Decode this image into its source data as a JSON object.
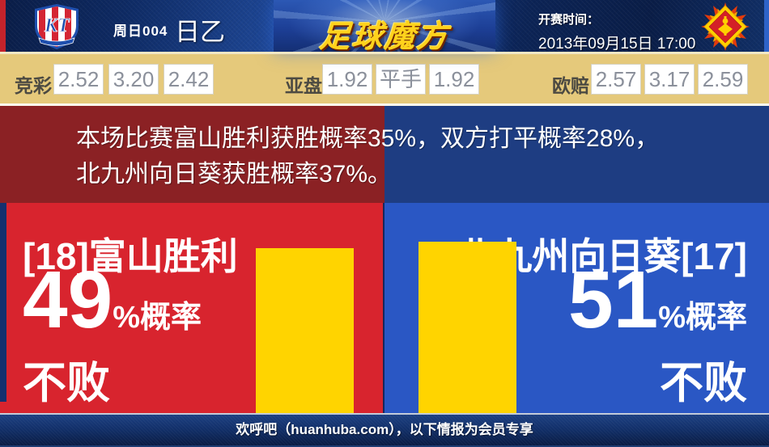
{
  "header": {
    "match_label": "周日004",
    "league": "日乙",
    "site_logo": "足球魔方",
    "kickoff_label": "开赛时间：",
    "kickoff_time": "2013年09月15日 17:00"
  },
  "icons": {
    "home_crest": "shield-crest-icon",
    "away_crest": "star-badge-icon"
  },
  "odds": {
    "jingcai": {
      "label": "竞彩",
      "values": [
        "2.52",
        "3.20",
        "2.42"
      ]
    },
    "yapan": {
      "label": "亚盘",
      "values": [
        "1.92",
        "平手",
        "1.92"
      ]
    },
    "oupei": {
      "label": "欧赔",
      "values": [
        "2.57",
        "3.17",
        "2.59"
      ]
    }
  },
  "analysis": {
    "line1": "本场比赛富山胜利获胜概率35%，双方打平概率28%，",
    "line2": "北九州向日葵获胜概率37%。"
  },
  "home": {
    "name": "[18]富山胜利",
    "percent": "49",
    "percent_suffix": "%概率",
    "result": "不败",
    "bar_percent": 49
  },
  "away": {
    "name": "北九州向日葵[17]",
    "percent": "51",
    "percent_suffix": "%概率",
    "result": "不败",
    "bar_percent": 51
  },
  "footer": {
    "text": "欢呼吧（huanhuba.com），以下情报为会员专享"
  },
  "colors": {
    "home_red": "#d8242e",
    "away_blue": "#2a57c4",
    "band_red": "#8b2124",
    "band_blue": "#1e3d82",
    "bar_yellow": "#ffd400",
    "odds_bg": "#e5c97b",
    "header_navy": "#0e2a63",
    "logo_gold": "#ffd21c"
  }
}
